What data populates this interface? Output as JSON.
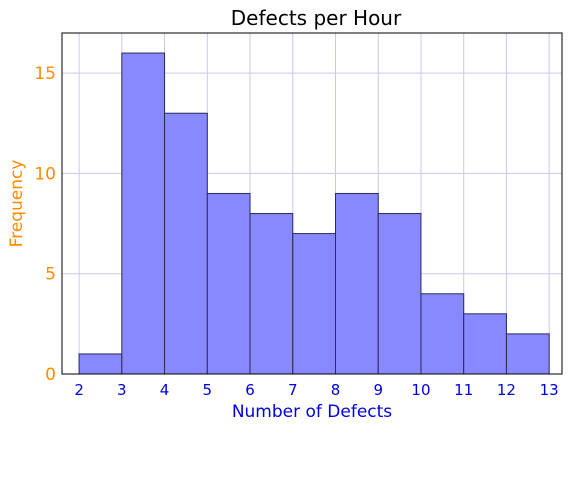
{
  "chart_data": {
    "type": "bar",
    "title": "Defects per Hour",
    "xlabel": "Number of Defects",
    "ylabel": "Frequency",
    "bin_edges": [
      2,
      3,
      4,
      5,
      6,
      7,
      8,
      9,
      10,
      11,
      12,
      13
    ],
    "categories": [
      "2-3",
      "3-4",
      "4-5",
      "5-6",
      "6-7",
      "7-8",
      "8-9",
      "9-10",
      "10-11",
      "11-12",
      "12-13"
    ],
    "values": [
      1,
      16,
      13,
      9,
      8,
      7,
      9,
      8,
      4,
      3,
      2
    ],
    "xlim": [
      1.6,
      13.3
    ],
    "ylim": [
      0,
      17
    ],
    "xticks": [
      2,
      3,
      4,
      5,
      6,
      7,
      8,
      9,
      10,
      11,
      12,
      13
    ],
    "yticks": [
      0,
      5,
      10,
      15
    ],
    "grid": true,
    "legend": "none",
    "colors": {
      "bar_fill": "#8888ff",
      "bar_stroke": "#2a2a5a",
      "grid": "#c8c8f0",
      "x_axis_text": "#0000dd",
      "y_axis_text": "#ff8c00",
      "title": "#000000",
      "frame": "#000000"
    }
  }
}
